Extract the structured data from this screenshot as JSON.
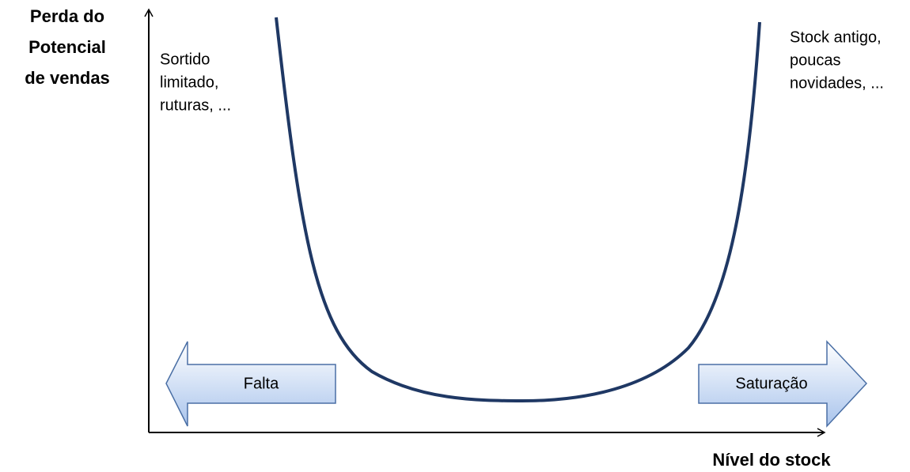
{
  "y_axis_label": [
    "Perda do",
    "Potencial",
    "de vendas"
  ],
  "x_axis_label": "Nível do stock",
  "left_annotation": [
    "Sortido",
    "limitado,",
    "ruturas, ..."
  ],
  "right_annotation": [
    "Stock antigo,",
    "poucas",
    "novidades, ..."
  ],
  "left_arrow": {
    "label": "Falta"
  },
  "right_arrow": {
    "label": "Saturação"
  }
}
